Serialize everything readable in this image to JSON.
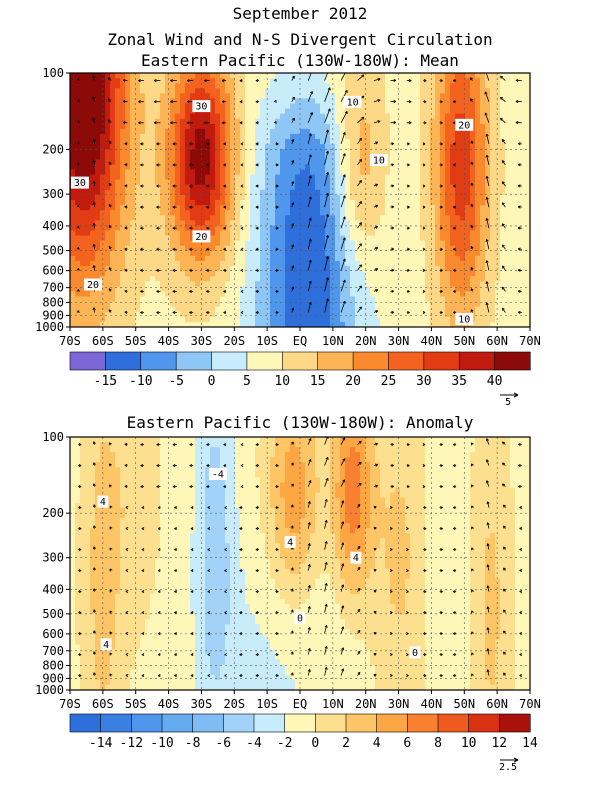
{
  "figure": {
    "title_line1": "September 2012",
    "title_line2": "Zonal Wind and N-S Divergent Circulation"
  },
  "chart_data": [
    {
      "type": "heatmap",
      "title": "Eastern Pacific (130W-180W): Mean",
      "x_tick_labels": [
        "70S",
        "60S",
        "50S",
        "40S",
        "30S",
        "20S",
        "10S",
        "EQ",
        "10N",
        "20N",
        "30N",
        "40N",
        "50N",
        "60N",
        "70N"
      ],
      "x_values": [
        -70,
        -60,
        -50,
        -40,
        -30,
        -20,
        -10,
        0,
        10,
        20,
        30,
        40,
        50,
        60,
        70
      ],
      "y_tick_labels": [
        "100",
        "200",
        "300",
        "400",
        "500",
        "600",
        "700",
        "800",
        "900",
        "1000"
      ],
      "y_values_hPa": [
        100,
        200,
        300,
        400,
        500,
        600,
        700,
        800,
        900,
        1000
      ],
      "xlim": [
        -70,
        70
      ],
      "ylim": [
        1000,
        100
      ],
      "y_scale": "log",
      "colorbar": {
        "tick_labels": [
          "-15",
          "-10",
          "-5",
          "0",
          "5",
          "10",
          "15",
          "20",
          "25",
          "30",
          "35",
          "40"
        ],
        "colors": [
          "#7b68d6",
          "#2f6fdb",
          "#4f96ec",
          "#8ec6f5",
          "#c9ecfb",
          "#fff7b8",
          "#fdd886",
          "#fdb454",
          "#fb8a2e",
          "#f4621f",
          "#e23c14",
          "#c11a0e",
          "#8c0a08"
        ]
      },
      "reference_vector": "5",
      "contour_labels": [
        {
          "text": "30",
          "lat": -67,
          "p": 270
        },
        {
          "text": "20",
          "lat": -63,
          "p": 680
        },
        {
          "text": "30",
          "lat": -30,
          "p": 135
        },
        {
          "text": "20",
          "lat": -30,
          "p": 440
        },
        {
          "text": "10",
          "lat": 16,
          "p": 130
        },
        {
          "text": "10",
          "lat": 24,
          "p": 220
        },
        {
          "text": "20",
          "lat": 50,
          "p": 160
        },
        {
          "text": "10",
          "lat": 50,
          "p": 930
        }
      ],
      "features": [
        {
          "lat": -66,
          "p": 110,
          "u": 42,
          "sx": 13,
          "sy": 0.75
        },
        {
          "lat": -30,
          "p": 215,
          "u": 35,
          "sx": 10,
          "sy": 0.4
        },
        {
          "lat": 2,
          "p": 650,
          "u": -11,
          "sx": 13,
          "sy": 0.6
        },
        {
          "lat": 49,
          "p": 230,
          "u": 25,
          "sx": 8,
          "sy": 0.6
        },
        {
          "lat": 18,
          "p": 230,
          "u": 14,
          "sx": 8,
          "sy": 0.4
        }
      ],
      "base": {
        "u": 8,
        "cross_lat": 3,
        "cross_scale": -12,
        "cross_width": 18
      },
      "vector_scale": 1.0
    },
    {
      "type": "heatmap",
      "title": "Eastern Pacific (130W-180W): Anomaly",
      "x_tick_labels": [
        "70S",
        "60S",
        "50S",
        "40S",
        "30S",
        "20S",
        "10S",
        "EQ",
        "10N",
        "20N",
        "30N",
        "40N",
        "50N",
        "60N",
        "70N"
      ],
      "x_values": [
        -70,
        -60,
        -50,
        -40,
        -30,
        -20,
        -10,
        0,
        10,
        20,
        30,
        40,
        50,
        60,
        70
      ],
      "y_tick_labels": [
        "100",
        "200",
        "300",
        "400",
        "500",
        "600",
        "700",
        "800",
        "900",
        "1000"
      ],
      "y_values_hPa": [
        100,
        200,
        300,
        400,
        500,
        600,
        700,
        800,
        900,
        1000
      ],
      "xlim": [
        -70,
        70
      ],
      "ylim": [
        1000,
        100
      ],
      "y_scale": "log",
      "colorbar": {
        "tick_labels": [
          "-14",
          "-12",
          "-10",
          "-8",
          "-6",
          "-4",
          "-2",
          "0",
          "2",
          "4",
          "6",
          "8",
          "10",
          "12",
          "14"
        ],
        "colors": [
          "#2f6fdb",
          "#3a80e2",
          "#4f96ec",
          "#66aaf0",
          "#80bcf3",
          "#a3d2f8",
          "#c9ecfb",
          "#fff7b8",
          "#fde08f",
          "#fdc565",
          "#fca644",
          "#f98030",
          "#ef5a1e",
          "#d93212",
          "#a8120a"
        ]
      },
      "reference_vector": "2.5",
      "contour_labels": [
        {
          "text": "4",
          "lat": -60,
          "p": 180
        },
        {
          "text": "4",
          "lat": -59,
          "p": 660
        },
        {
          "text": "-4",
          "lat": -25,
          "p": 140
        },
        {
          "text": "4",
          "lat": -3,
          "p": 260
        },
        {
          "text": "4",
          "lat": 17,
          "p": 300
        },
        {
          "text": "0",
          "lat": 0,
          "p": 520
        },
        {
          "text": "0",
          "lat": 35,
          "p": 710
        }
      ],
      "features": [
        {
          "lat": -60,
          "p": 350,
          "u": 3.5,
          "sx": 6,
          "sy": 0.85
        },
        {
          "lat": -50,
          "p": 170,
          "u": 2,
          "sx": 7,
          "sy": 0.5
        },
        {
          "lat": -26,
          "p": 270,
          "u": -4.5,
          "sx": 6,
          "sy": 0.75
        },
        {
          "lat": -2,
          "p": 175,
          "u": 6,
          "sx": 8,
          "sy": 0.45
        },
        {
          "lat": 16,
          "p": 165,
          "u": 8,
          "sx": 6,
          "sy": 0.4
        },
        {
          "lat": 30,
          "p": 300,
          "u": 3,
          "sx": 8,
          "sy": 0.7
        },
        {
          "lat": 58,
          "p": 480,
          "u": 3,
          "sx": 6,
          "sy": 0.8
        },
        {
          "lat": -5,
          "p": 700,
          "u": -2,
          "sx": 20,
          "sy": 0.5
        },
        {
          "lat": 45,
          "p": 350,
          "u": -1.5,
          "sx": 5,
          "sy": 0.8
        }
      ],
      "base": {
        "u": -0.6,
        "cross_lat": 0,
        "cross_scale": 0,
        "cross_width": 10
      },
      "vector_scale": 0.6
    }
  ]
}
